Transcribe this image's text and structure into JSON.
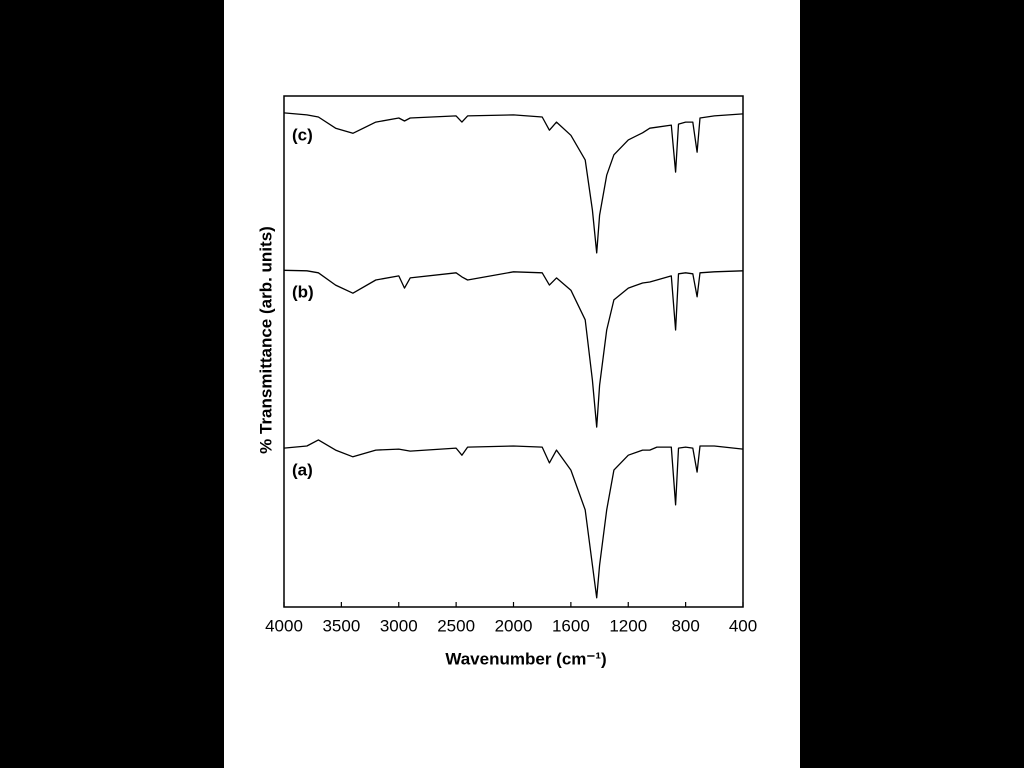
{
  "chart_data": {
    "type": "line",
    "x_label": "Wavenumber (cm⁻¹)",
    "y_label": "% Transmittance (arb. units)",
    "xlim": [
      4000,
      400
    ],
    "xticks": [
      4000,
      3500,
      3000,
      2500,
      2000,
      1600,
      1200,
      800,
      400
    ],
    "ylim": [
      0,
      100
    ],
    "x": [
      4000,
      3800,
      3700,
      3550,
      3400,
      3200,
      3000,
      2950,
      2900,
      2500,
      2450,
      2400,
      2000,
      1800,
      1750,
      1700,
      1600,
      1500,
      1450,
      1420,
      1400,
      1350,
      1300,
      1200,
      1100,
      1050,
      1000,
      900,
      870,
      850,
      800,
      750,
      720,
      700,
      600,
      400
    ],
    "series": [
      {
        "name": "(a)",
        "color": "#000000",
        "values": [
          31.1,
          31.5,
          32.7,
          30.7,
          29.4,
          30.7,
          30.9,
          30.7,
          30.5,
          31.1,
          29.7,
          31.3,
          31.5,
          31.3,
          28.2,
          30.7,
          26.8,
          19.0,
          8.2,
          1.8,
          8.2,
          19.0,
          26.8,
          29.7,
          30.7,
          30.7,
          31.3,
          31.3,
          20.0,
          31.1,
          31.3,
          31.1,
          26.4,
          31.5,
          31.5,
          30.9
        ]
      },
      {
        "name": "(b)",
        "color": "#000000",
        "values": [
          65.9,
          65.8,
          65.4,
          63.0,
          61.4,
          64.0,
          64.8,
          62.4,
          64.4,
          65.4,
          64.6,
          64.0,
          65.6,
          65.4,
          63.0,
          64.4,
          62.0,
          56.2,
          44.4,
          35.2,
          43.4,
          54.2,
          60.1,
          62.4,
          63.4,
          63.6,
          64.0,
          64.8,
          54.2,
          65.2,
          65.4,
          65.2,
          60.7,
          65.4,
          65.6,
          65.8
        ]
      },
      {
        "name": "(c)",
        "color": "#000000",
        "values": [
          96.7,
          96.3,
          95.9,
          93.7,
          92.7,
          94.9,
          95.7,
          95.1,
          95.7,
          96.1,
          94.9,
          96.1,
          96.3,
          95.9,
          93.3,
          94.9,
          92.3,
          87.5,
          77.7,
          69.3,
          76.7,
          84.5,
          88.5,
          91.4,
          92.8,
          93.7,
          93.9,
          94.3,
          85.1,
          94.5,
          94.9,
          94.9,
          89.0,
          95.7,
          96.1,
          96.5
        ]
      }
    ]
  }
}
